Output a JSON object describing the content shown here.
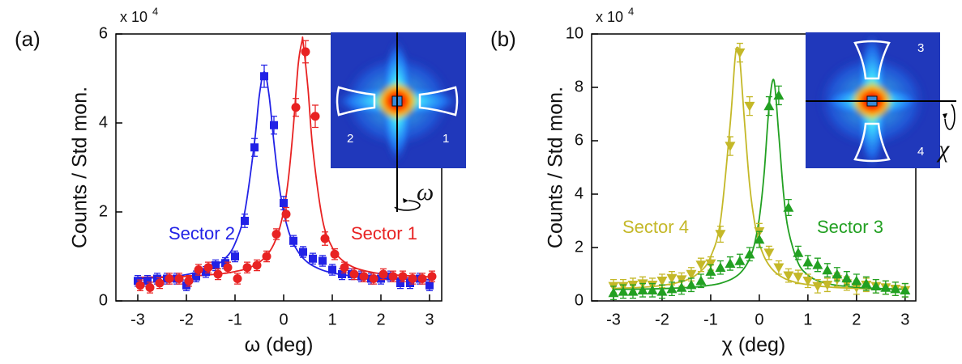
{
  "chart_data": [
    {
      "type": "scatter",
      "panel_label": "(a)",
      "multiplier": "x 10",
      "multiplier_exponent": "4",
      "x_label": "ω (deg)",
      "y_label": "Counts / Std mon.",
      "xlim": [
        -3.45,
        3.25
      ],
      "ylim": [
        0,
        6
      ],
      "xticks": [
        -3,
        -2,
        -1,
        0,
        1,
        2,
        3
      ],
      "yticks": [
        0,
        2,
        4,
        6
      ],
      "series": [
        {
          "name": "Sector 2",
          "color": "#2222e6",
          "marker": "square",
          "x": [
            -3,
            -2.8,
            -2.6,
            -2.4,
            -2.2,
            -2,
            -1.8,
            -1.6,
            -1.4,
            -1.2,
            -1,
            -0.8,
            -0.6,
            -0.4,
            -0.2,
            0,
            0.2,
            0.4,
            0.6,
            0.8,
            1,
            1.2,
            1.4,
            1.6,
            1.8,
            2,
            2.2,
            2.4,
            2.6,
            2.8,
            3
          ],
          "values": [
            0.45,
            0.45,
            0.5,
            0.5,
            0.5,
            0.35,
            0.55,
            0.65,
            0.8,
            0.85,
            1.0,
            1.8,
            3.45,
            5.05,
            3.95,
            2.2,
            1.35,
            1.1,
            0.95,
            0.9,
            0.7,
            0.6,
            0.6,
            0.55,
            0.5,
            0.5,
            0.55,
            0.4,
            0.4,
            0.5,
            0.35
          ],
          "errors": [
            0.12,
            0.12,
            0.12,
            0.12,
            0.12,
            0.12,
            0.12,
            0.12,
            0.12,
            0.12,
            0.12,
            0.15,
            0.2,
            0.25,
            0.2,
            0.15,
            0.12,
            0.12,
            0.12,
            0.12,
            0.12,
            0.12,
            0.12,
            0.12,
            0.12,
            0.12,
            0.12,
            0.12,
            0.12,
            0.12,
            0.12
          ]
        },
        {
          "name": "Sector 1",
          "color": "#e82222",
          "marker": "circle",
          "x": [
            -2.95,
            -2.75,
            -2.55,
            -2.35,
            -2.15,
            -1.95,
            -1.75,
            -1.55,
            -1.35,
            -1.15,
            -0.95,
            -0.75,
            -0.55,
            -0.35,
            -0.15,
            0.05,
            0.25,
            0.45,
            0.65,
            0.85,
            1.05,
            1.25,
            1.45,
            1.65,
            1.85,
            2.05,
            2.25,
            2.45,
            2.65,
            2.85,
            3.05
          ],
          "values": [
            0.35,
            0.3,
            0.4,
            0.5,
            0.5,
            0.45,
            0.7,
            0.75,
            0.6,
            0.75,
            0.5,
            0.75,
            0.8,
            1.0,
            1.5,
            1.95,
            4.35,
            5.6,
            4.15,
            1.4,
            1.05,
            0.75,
            0.6,
            0.55,
            0.5,
            0.6,
            0.55,
            0.55,
            0.5,
            0.5,
            0.55
          ],
          "errors": [
            0.12,
            0.12,
            0.12,
            0.12,
            0.12,
            0.12,
            0.12,
            0.12,
            0.12,
            0.12,
            0.12,
            0.12,
            0.12,
            0.12,
            0.12,
            0.15,
            0.2,
            0.25,
            0.25,
            0.15,
            0.12,
            0.12,
            0.12,
            0.12,
            0.12,
            0.12,
            0.12,
            0.12,
            0.12,
            0.12,
            0.12
          ]
        }
      ],
      "fits": [
        {
          "color": "#2222e6",
          "x": [
            -3,
            -2.5,
            -2,
            -1.5,
            -1.2,
            -1,
            -0.8,
            -0.6,
            -0.5,
            -0.4,
            -0.3,
            -0.2,
            -0.1,
            0,
            0.1,
            0.2,
            0.3,
            0.4,
            0.5,
            0.6,
            0.8,
            1,
            1.2,
            1.5,
            2,
            2.5,
            3
          ],
          "values": [
            0.5,
            0.53,
            0.59,
            0.74,
            0.96,
            1.29,
            2.0,
            3.56,
            4.62,
            5.15,
            4.62,
            3.56,
            2.64,
            2.0,
            1.57,
            1.29,
            1.1,
            0.96,
            0.86,
            0.79,
            0.69,
            0.63,
            0.59,
            0.55,
            0.51,
            0.49,
            0.48
          ]
        },
        {
          "color": "#e82222",
          "x": [
            -3,
            -2.5,
            -2,
            -1.5,
            -1.2,
            -1,
            -0.8,
            -0.6,
            -0.5,
            -0.4,
            -0.3,
            -0.2,
            -0.1,
            0,
            0.1,
            0.2,
            0.3,
            0.38,
            0.4,
            0.5,
            0.6,
            0.8,
            1,
            1.2,
            1.5,
            2,
            2.5,
            3
          ],
          "values": [
            0.53,
            0.54,
            0.55,
            0.59,
            0.62,
            0.66,
            0.71,
            0.8,
            0.87,
            0.96,
            1.09,
            1.28,
            1.57,
            2.02,
            2.77,
            3.92,
            5.32,
            5.85,
            5.81,
            4.78,
            3.41,
            1.82,
            1.2,
            0.92,
            0.73,
            0.61,
            0.57,
            0.54
          ]
        }
      ],
      "inset_labels": [
        "2",
        "1"
      ],
      "rotation_symbol": "ω"
    },
    {
      "type": "scatter",
      "panel_label": "(b)",
      "multiplier": "x 10",
      "multiplier_exponent": "4",
      "x_label": "χ (deg)",
      "y_label": "Counts / Std mon.",
      "xlim": [
        -3.45,
        3.22
      ],
      "ylim": [
        0,
        10
      ],
      "xticks": [
        -3,
        -2,
        -1,
        0,
        1,
        2,
        3
      ],
      "yticks": [
        0,
        2,
        4,
        6,
        8,
        10
      ],
      "series": [
        {
          "name": "Sector 4",
          "color": "#c4b828",
          "marker": "triangle-down",
          "x": [
            -3,
            -2.8,
            -2.6,
            -2.4,
            -2.2,
            -2,
            -1.8,
            -1.6,
            -1.4,
            -1.2,
            -1,
            -0.8,
            -0.6,
            -0.4,
            -0.2,
            0,
            0.2,
            0.4,
            0.6,
            0.8,
            1,
            1.2,
            1.4,
            1.6,
            1.8,
            2,
            2.2,
            2.4,
            2.6,
            2.8,
            3
          ],
          "values": [
            0.55,
            0.55,
            0.6,
            0.65,
            0.6,
            0.75,
            0.85,
            0.8,
            1.0,
            1.35,
            1.4,
            2.5,
            5.8,
            9.3,
            7.3,
            2.6,
            1.8,
            1.25,
            0.95,
            0.9,
            0.75,
            0.55,
            0.6,
            0.8,
            0.65,
            0.5,
            0.6,
            0.55,
            0.5,
            0.45,
            0.4
          ],
          "errors": [
            0.25,
            0.25,
            0.25,
            0.25,
            0.25,
            0.25,
            0.25,
            0.25,
            0.25,
            0.25,
            0.25,
            0.3,
            0.35,
            0.35,
            0.35,
            0.3,
            0.25,
            0.25,
            0.25,
            0.25,
            0.25,
            0.25,
            0.25,
            0.25,
            0.25,
            0.25,
            0.25,
            0.25,
            0.25,
            0.25,
            0.25
          ]
        },
        {
          "name": "Sector 3",
          "color": "#22a022",
          "marker": "triangle-up",
          "x": [
            -3,
            -2.8,
            -2.6,
            -2.4,
            -2.2,
            -2,
            -1.8,
            -1.6,
            -1.4,
            -1.2,
            -1,
            -0.8,
            -0.6,
            -0.4,
            -0.2,
            0,
            0.2,
            0.4,
            0.6,
            0.8,
            1,
            1.2,
            1.4,
            1.6,
            1.8,
            2,
            2.2,
            2.4,
            2.6,
            2.8,
            3
          ],
          "values": [
            0.3,
            0.35,
            0.35,
            0.4,
            0.4,
            0.35,
            0.45,
            0.5,
            0.6,
            0.75,
            1.1,
            1.25,
            1.4,
            1.5,
            1.75,
            2.3,
            7.3,
            7.7,
            3.5,
            1.8,
            1.45,
            1.35,
            1.15,
            1.0,
            0.85,
            0.75,
            0.65,
            0.55,
            0.5,
            0.45,
            0.4
          ],
          "errors": [
            0.25,
            0.25,
            0.25,
            0.25,
            0.25,
            0.25,
            0.25,
            0.25,
            0.25,
            0.25,
            0.25,
            0.25,
            0.25,
            0.25,
            0.25,
            0.3,
            0.35,
            0.35,
            0.3,
            0.25,
            0.25,
            0.25,
            0.25,
            0.25,
            0.25,
            0.25,
            0.25,
            0.25,
            0.25,
            0.25,
            0.25
          ]
        }
      ],
      "fits": [
        {
          "color": "#c4b828",
          "x": [
            -3,
            -2.5,
            -2,
            -1.5,
            -1.2,
            -1,
            -0.8,
            -0.6,
            -0.5,
            -0.45,
            -0.4,
            -0.3,
            -0.2,
            -0.1,
            0,
            0.1,
            0.2,
            0.3,
            0.4,
            0.5,
            0.6,
            0.8,
            1,
            1.2,
            1.5,
            2,
            2.5,
            3
          ],
          "values": [
            0.47,
            0.5,
            0.58,
            0.78,
            1.12,
            1.66,
            2.98,
            6.61,
            9.05,
            9.5,
            9.05,
            6.61,
            4.37,
            2.98,
            2.16,
            1.66,
            1.34,
            1.12,
            0.97,
            0.86,
            0.78,
            0.67,
            0.61,
            0.56,
            0.51,
            0.47,
            0.45,
            0.44
          ]
        },
        {
          "color": "#22a022",
          "x": [
            -3,
            -2.5,
            -2,
            -1.5,
            -1.2,
            -1,
            -0.8,
            -0.6,
            -0.5,
            -0.4,
            -0.3,
            -0.2,
            -0.1,
            0,
            0.1,
            0.2,
            0.3,
            0.4,
            0.5,
            0.6,
            0.8,
            1,
            1.2,
            1.5,
            2,
            2.5,
            3
          ],
          "values": [
            0.43,
            0.44,
            0.46,
            0.5,
            0.54,
            0.59,
            0.66,
            0.79,
            0.89,
            1.03,
            1.25,
            1.58,
            2.12,
            3.09,
            4.79,
            7.25,
            8.27,
            6.25,
            4.0,
            2.63,
            1.42,
            0.97,
            0.76,
            0.61,
            0.51,
            0.46,
            0.44
          ]
        }
      ],
      "inset_labels": [
        "3",
        "4"
      ],
      "rotation_symbol": "χ"
    }
  ]
}
